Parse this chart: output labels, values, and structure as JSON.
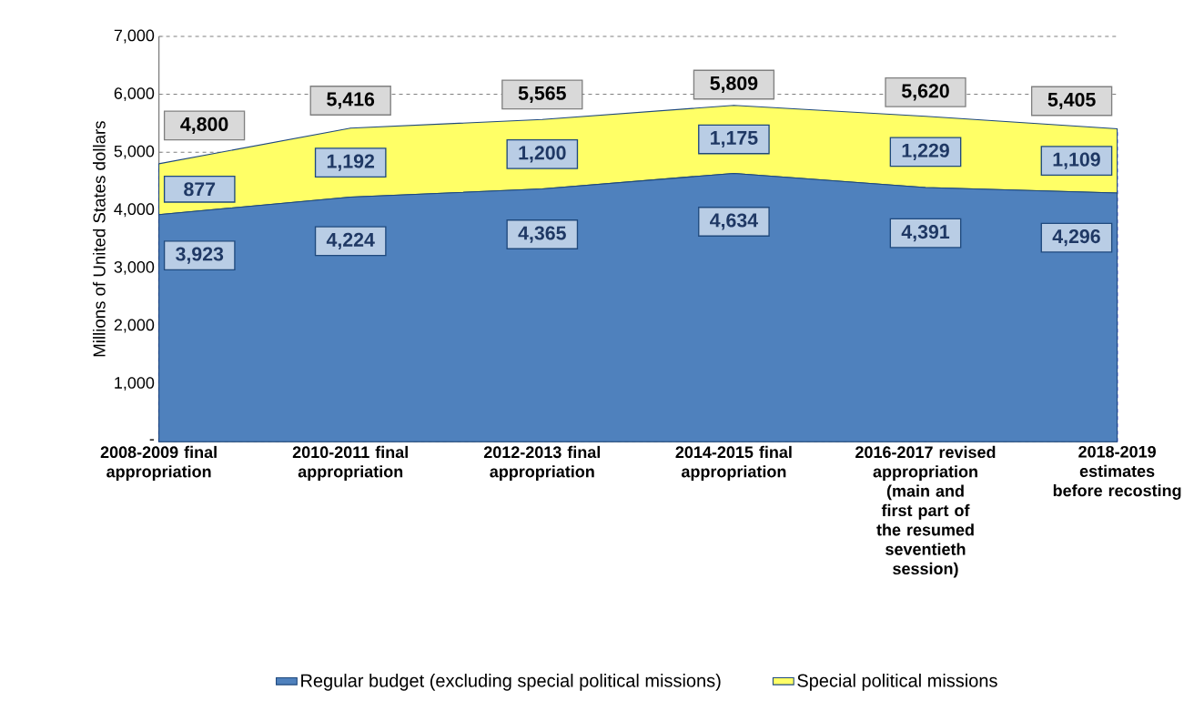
{
  "chart_data": {
    "type": "area",
    "stacked": true,
    "ylabel": "Millions of United States dollars",
    "categories": [
      "2008-2009 final appropriation",
      "2010-2011 final appropriation",
      "2012-2013 final appropriation",
      "2014-2015 final appropriation",
      "2016-2017 revised appropriation (main and first part of the resumed seventieth session)",
      "2018-2019 estimates before recosting"
    ],
    "series": [
      {
        "name": "Regular budget (excluding special political missions)",
        "color": "#4f81bd",
        "values": [
          3923,
          4224,
          4365,
          4634,
          4391,
          4296
        ],
        "value_labels": [
          "3,923",
          "4,224",
          "4,365",
          "4,634",
          "4,391",
          "4,296"
        ]
      },
      {
        "name": "Special political missions",
        "color": "#ffff66",
        "values": [
          877,
          1192,
          1200,
          1175,
          1229,
          1109
        ],
        "value_labels": [
          "877",
          "1,192",
          "1,200",
          "1,175",
          "1,229",
          "1,109"
        ]
      }
    ],
    "totals": [
      "4,800",
      "5,416",
      "5,565",
      "5,809",
      "5,620",
      "5,405"
    ],
    "ylim": [
      0,
      7000
    ],
    "yticks": [
      {
        "value": 0,
        "label": "-"
      },
      {
        "value": 1000,
        "label": "1,000"
      },
      {
        "value": 2000,
        "label": "2,000"
      },
      {
        "value": 3000,
        "label": "3,000"
      },
      {
        "value": 4000,
        "label": "4,000"
      },
      {
        "value": 5000,
        "label": "5,000"
      },
      {
        "value": 6000,
        "label": "6,000"
      },
      {
        "value": 7000,
        "label": "7,000"
      }
    ],
    "grid": true,
    "legend": "bottom"
  }
}
